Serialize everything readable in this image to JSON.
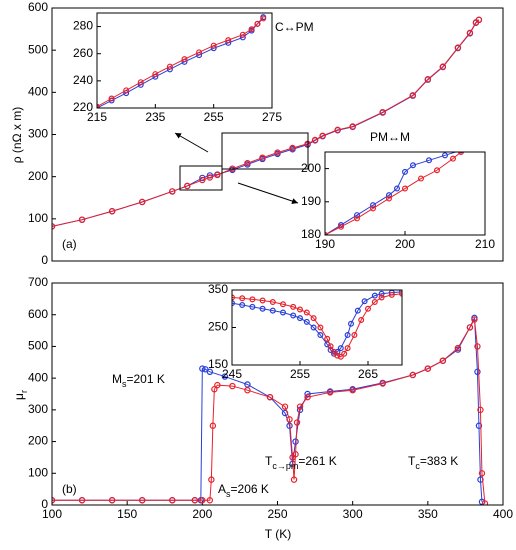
{
  "chart_data": [
    {
      "type": "scatter",
      "ylabel": "ρ (nΩ x m)",
      "xlim": [
        100,
        400
      ],
      "ylim": [
        0,
        600
      ],
      "yticks": [
        0,
        100,
        200,
        300,
        400,
        500,
        600
      ],
      "annotations": [
        "(a)",
        "C↔PM",
        "PM↔M"
      ],
      "series": [
        {
          "color": "#2a3fd8",
          "x": [
            100,
            120,
            140,
            160,
            180,
            190,
            200,
            205,
            210,
            220,
            230,
            240,
            250,
            260,
            270,
            275,
            280,
            290,
            300,
            320,
            340,
            350,
            360,
            370,
            378,
            382,
            384
          ],
          "values": [
            82,
            98,
            118,
            140,
            165,
            178,
            197,
            203,
            205,
            216,
            229,
            242,
            254,
            265,
            276,
            286,
            296,
            310,
            318,
            352,
            392,
            430,
            460,
            505,
            540,
            565,
            572
          ]
        },
        {
          "color": "#e8202a",
          "x": [
            100,
            120,
            140,
            160,
            180,
            190,
            200,
            205,
            210,
            220,
            230,
            240,
            250,
            260,
            270,
            275,
            280,
            290,
            300,
            320,
            340,
            350,
            360,
            370,
            378,
            382,
            384
          ],
          "values": [
            82,
            98,
            118,
            140,
            165,
            178,
            192,
            198,
            204,
            219,
            232,
            245,
            257,
            268,
            278,
            287,
            297,
            311,
            319,
            353,
            393,
            431,
            461,
            506,
            541,
            566,
            572
          ]
        }
      ]
    },
    {
      "type": "scatter",
      "xlim": [
        215,
        275
      ],
      "ylim": [
        220,
        290
      ],
      "xticks": [
        215,
        235,
        255,
        275
      ],
      "yticks": [
        220,
        240,
        260,
        280
      ],
      "series": [
        {
          "color": "#2a3fd8",
          "x": [
            215,
            220,
            225,
            230,
            235,
            240,
            245,
            250,
            255,
            260,
            265,
            268,
            270,
            272
          ],
          "values": [
            220,
            225.5,
            231,
            237,
            243,
            248.5,
            254,
            259,
            264,
            268,
            272,
            277,
            282,
            287
          ]
        },
        {
          "color": "#e8202a",
          "x": [
            215,
            220,
            225,
            230,
            235,
            240,
            245,
            250,
            255,
            260,
            265,
            268,
            270,
            272
          ],
          "values": [
            221,
            227,
            233,
            239,
            245,
            250.5,
            256,
            261,
            266,
            270,
            274,
            278,
            282,
            286
          ]
        }
      ]
    },
    {
      "type": "scatter",
      "xlim": [
        190,
        210
      ],
      "ylim": [
        180,
        205
      ],
      "xticks": [
        190,
        200,
        210
      ],
      "yticks": [
        180,
        190,
        200
      ],
      "series": [
        {
          "color": "#2a3fd8",
          "x": [
            190,
            192,
            194,
            196,
            198,
            199,
            200,
            201,
            203,
            205,
            207
          ],
          "values": [
            180,
            183,
            186,
            189,
            192,
            194,
            199,
            201,
            202.5,
            204,
            205.5
          ]
        },
        {
          "color": "#e8202a",
          "x": [
            190,
            192,
            194,
            196,
            198,
            200,
            202,
            204,
            206,
            207
          ],
          "values": [
            180,
            182.5,
            185,
            188,
            191,
            194,
            197,
            199.5,
            203,
            205
          ]
        }
      ]
    },
    {
      "type": "scatter",
      "xlabel": "T (K)",
      "ylabel": {
        "text": "μ",
        "sub": "r"
      },
      "xlim": [
        100,
        400
      ],
      "ylim": [
        0,
        700
      ],
      "xticks": [
        100,
        150,
        200,
        250,
        300,
        350,
        400
      ],
      "yticks": [
        0,
        100,
        200,
        300,
        400,
        500,
        600,
        700
      ],
      "annotations": [
        "(b)",
        {
          "text": "M",
          "sub": "s",
          "rest": "=201 K"
        },
        {
          "text": "A",
          "sub": "s",
          "rest": "=206 K"
        },
        {
          "text": "T",
          "sub": "c→pm",
          "rest": "=261 K"
        },
        {
          "text": "T",
          "sub": "c",
          "rest": "=383 K"
        }
      ],
      "series": [
        {
          "color": "#2a3fd8",
          "x": [
            100,
            120,
            140,
            160,
            180,
            195,
            199,
            200,
            202,
            205,
            215,
            230,
            245,
            255,
            258,
            260,
            262,
            265,
            270,
            285,
            300,
            320,
            340,
            350,
            360,
            370,
            378,
            381,
            383,
            384,
            385,
            386
          ],
          "values": [
            15,
            15,
            15,
            15,
            15,
            15,
            15,
            430,
            428,
            420,
            405,
            380,
            340,
            290,
            250,
            130,
            200,
            300,
            350,
            358,
            365,
            385,
            410,
            430,
            455,
            490,
            560,
            590,
            420,
            250,
            80,
            10
          ]
        },
        {
          "color": "#e8202a",
          "x": [
            100,
            120,
            140,
            160,
            180,
            195,
            200,
            205,
            206,
            207,
            208,
            210,
            220,
            230,
            245,
            255,
            258,
            260,
            261,
            262,
            263,
            265,
            270,
            285,
            300,
            320,
            340,
            350,
            360,
            370,
            378,
            381,
            383,
            385,
            386,
            388
          ],
          "values": [
            15,
            15,
            15,
            15,
            15,
            15,
            15,
            15,
            80,
            250,
            365,
            378,
            375,
            362,
            340,
            310,
            270,
            150,
            80,
            160,
            260,
            310,
            340,
            355,
            362,
            383,
            410,
            430,
            455,
            495,
            560,
            585,
            500,
            300,
            100,
            5
          ]
        }
      ]
    },
    {
      "type": "scatter",
      "xlim": [
        245,
        270
      ],
      "ylim": [
        150,
        350
      ],
      "xticks": [
        245,
        255,
        265
      ],
      "yticks": [
        150,
        250,
        350
      ],
      "series": [
        {
          "color": "#2a3fd8",
          "x": [
            245,
            246.5,
            248,
            249.5,
            251,
            252.5,
            254,
            255,
            256,
            257,
            258,
            259,
            259.5,
            260,
            260.5,
            261,
            262,
            262.5,
            263.5,
            264.5,
            266,
            267,
            268.5,
            270
          ],
          "values": [
            315,
            310,
            305,
            300,
            295,
            290,
            282,
            275,
            265,
            250,
            230,
            205,
            190,
            180,
            185,
            195,
            230,
            260,
            295,
            320,
            335,
            340,
            343,
            345
          ]
        },
        {
          "color": "#e8202a",
          "x": [
            245,
            246.5,
            248,
            249.5,
            251,
            252.5,
            254,
            255,
            256,
            257,
            258,
            259,
            259.5,
            260,
            260.5,
            261,
            261.5,
            262,
            263,
            264,
            265,
            266,
            267,
            268.5,
            270
          ],
          "values": [
            330,
            328,
            325,
            322,
            318,
            312,
            305,
            298,
            290,
            275,
            250,
            220,
            200,
            185,
            175,
            172,
            180,
            195,
            230,
            270,
            300,
            318,
            330,
            337,
            340
          ]
        }
      ]
    }
  ]
}
